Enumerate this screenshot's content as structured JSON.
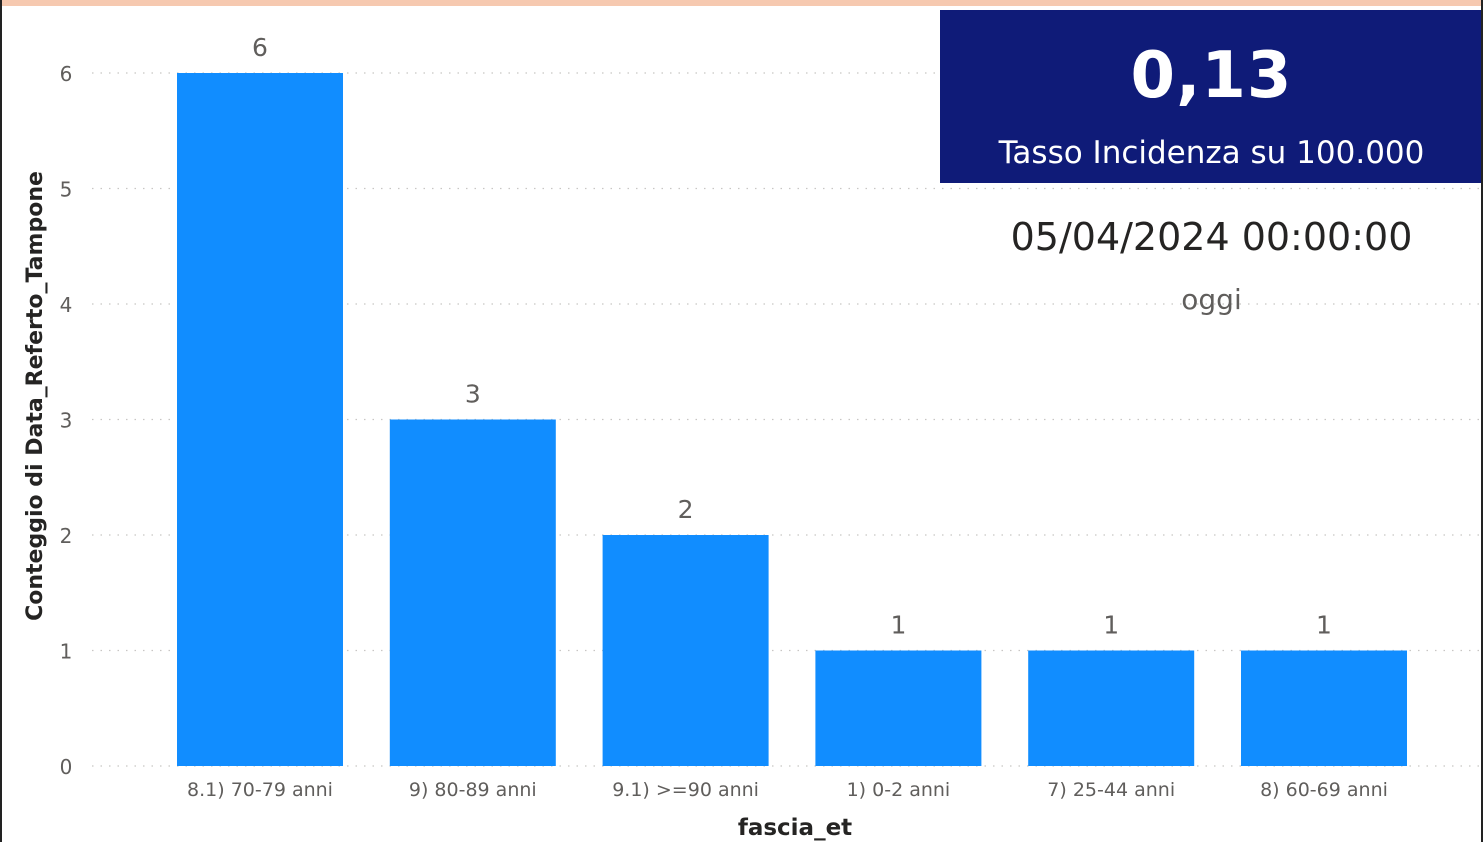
{
  "chart_data": {
    "type": "bar",
    "categories": [
      "8.1) 70-79 anni",
      "9) 80-89 anni",
      "9.1) >=90 anni",
      "1) 0-2 anni",
      "7) 25-44 anni",
      "8) 60-69 anni"
    ],
    "values": [
      6,
      3,
      2,
      1,
      1,
      1
    ],
    "data_labels": [
      "6",
      "3",
      "2",
      "1",
      "1",
      "1"
    ],
    "xlabel": "fascia_et",
    "ylabel": "Conteggio di Data_Referto_Tampone",
    "ylim": [
      0,
      6
    ],
    "yticks": [
      "0",
      "1",
      "2",
      "3",
      "4",
      "5",
      "6"
    ],
    "grid": true,
    "bar_color": "#118dff"
  },
  "kpi": {
    "value": "0,13",
    "label": "Tasso Incidenza su 100.000",
    "background": "#0f1b78"
  },
  "date_card": {
    "value": "05/04/2024 00:00:00",
    "label": "oggi"
  }
}
